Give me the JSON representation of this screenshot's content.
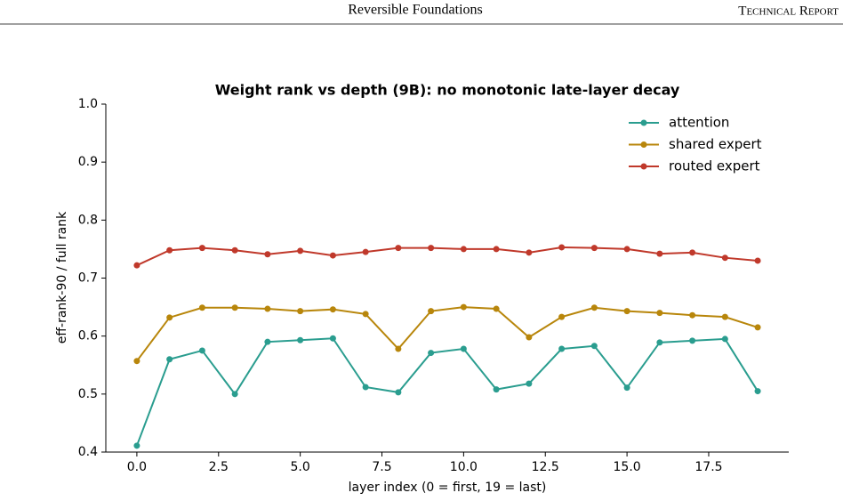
{
  "header": {
    "title": "Reversible Foundations",
    "tag": "Technical Report"
  },
  "chart_data": {
    "type": "line",
    "title": "Weight rank vs depth (9B): no monotonic late-layer decay",
    "x_label": "layer index (0 = first, 19 = last)",
    "y_label": "eff-rank-90 / full rank",
    "x": [
      0,
      1,
      2,
      3,
      4,
      5,
      6,
      7,
      8,
      9,
      10,
      11,
      12,
      13,
      14,
      15,
      16,
      17,
      18,
      19
    ],
    "series": [
      {
        "name": "attention",
        "color": "#2a9d8f",
        "values": [
          0.411,
          0.56,
          0.575,
          0.5,
          0.59,
          0.593,
          0.596,
          0.512,
          0.503,
          0.571,
          0.578,
          0.508,
          0.518,
          0.578,
          0.583,
          0.511,
          0.589,
          0.592,
          0.595,
          0.505
        ]
      },
      {
        "name": "shared expert",
        "color": "#b8860b",
        "values": [
          0.557,
          0.632,
          0.649,
          0.649,
          0.647,
          0.643,
          0.646,
          0.638,
          0.578,
          0.643,
          0.65,
          0.647,
          0.598,
          0.633,
          0.649,
          0.643,
          0.64,
          0.636,
          0.633,
          0.615
        ]
      },
      {
        "name": "routed expert",
        "color": "#c0392b",
        "values": [
          0.722,
          0.748,
          0.752,
          0.748,
          0.741,
          0.747,
          0.739,
          0.745,
          0.752,
          0.752,
          0.75,
          0.75,
          0.744,
          0.753,
          0.752,
          0.75,
          0.742,
          0.744,
          0.735,
          0.73
        ]
      }
    ],
    "xlim": [
      -0.95,
      19.95
    ],
    "ylim": [
      0.4,
      1
    ],
    "xticks": [
      {
        "value": 0,
        "label": "0.0"
      },
      2.5,
      {
        "value": 5,
        "label": "5.0"
      },
      7.5,
      {
        "value": 10,
        "label": "10.0"
      },
      12.5,
      {
        "value": 15,
        "label": "15.0"
      },
      17.5
    ],
    "yticks": [
      0.4,
      0.5,
      0.6,
      0.7,
      0.8,
      0.9,
      {
        "value": 1,
        "label": "1.0"
      }
    ],
    "grid": false,
    "legend": "upper-right"
  }
}
